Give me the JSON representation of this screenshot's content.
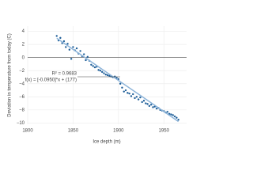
{
  "chart_data": {
    "type": "scatter",
    "xlabel": "Ice depth (m)",
    "ylabel": "Deviation in temperature from today (C)",
    "annotation": {
      "lines": [
        "R² = 0.9683",
        "f(x) = [-0.0950]*x + (177)"
      ]
    },
    "xlim": [
      1800,
      1975
    ],
    "ylim": [
      -10.2,
      4.8
    ],
    "xticks": [
      1800,
      1850,
      1900,
      1950
    ],
    "yticks": [
      4,
      2,
      0,
      {
        "value": -2,
        "label": "−2"
      },
      {
        "value": -4,
        "label": "−4"
      },
      {
        "value": -6,
        "label": "−6"
      },
      {
        "value": -8,
        "label": "−8"
      },
      {
        "value": -10,
        "label": "−10"
      }
    ],
    "grid": true,
    "color": "#1f5f99",
    "x": [
      1832,
      1834,
      1836,
      1838,
      1840,
      1842,
      1844,
      1846,
      1848,
      1850,
      1852,
      1854,
      1856,
      1858,
      1860,
      1862,
      1864,
      1866,
      1868,
      1870,
      1872,
      1874,
      1876,
      1878,
      1880,
      1882,
      1884,
      1886,
      1888,
      1890,
      1892,
      1894,
      1896,
      1898,
      1900,
      1902,
      1904,
      1906,
      1908,
      1910,
      1912,
      1914,
      1916,
      1918,
      1920,
      1922,
      1924,
      1926,
      1928,
      1930,
      1932,
      1934,
      1936,
      1938,
      1940,
      1942,
      1944,
      1946,
      1948,
      1950,
      1952,
      1954,
      1956,
      1958,
      1960,
      1962,
      1964,
      1966
    ],
    "values": [
      3.3,
      2.6,
      3.0,
      2.2,
      2.5,
      1.6,
      2.1,
      1.2,
      -0.2,
      1.6,
      1.1,
      1.4,
      0.6,
      1.0,
      0.2,
      0.5,
      -0.4,
      0.1,
      -0.5,
      -1.1,
      -1.3,
      -1.5,
      -1.4,
      -1.9,
      -2.0,
      -2.2,
      -2.4,
      -2.6,
      -2.7,
      -2.8,
      -2.9,
      -3.0,
      -2.9,
      -3.1,
      -3.3,
      -4.0,
      -4.6,
      -5.2,
      -5.0,
      -5.4,
      -5.5,
      -5.9,
      -5.6,
      -6.2,
      -6.0,
      -6.4,
      -6.1,
      -6.8,
      -6.6,
      -7.0,
      -7.1,
      -7.4,
      -7.2,
      -7.6,
      -7.5,
      -7.8,
      -7.7,
      -8.0,
      -8.1,
      -8.2,
      -8.4,
      -8.3,
      -8.6,
      -8.7,
      -8.8,
      -9.0,
      -9.2,
      -9.5
    ],
    "fit": {
      "x": [
        1832,
        1966
      ],
      "values": [
        2.96,
        -9.77
      ],
      "color": "#8db4d9"
    }
  }
}
